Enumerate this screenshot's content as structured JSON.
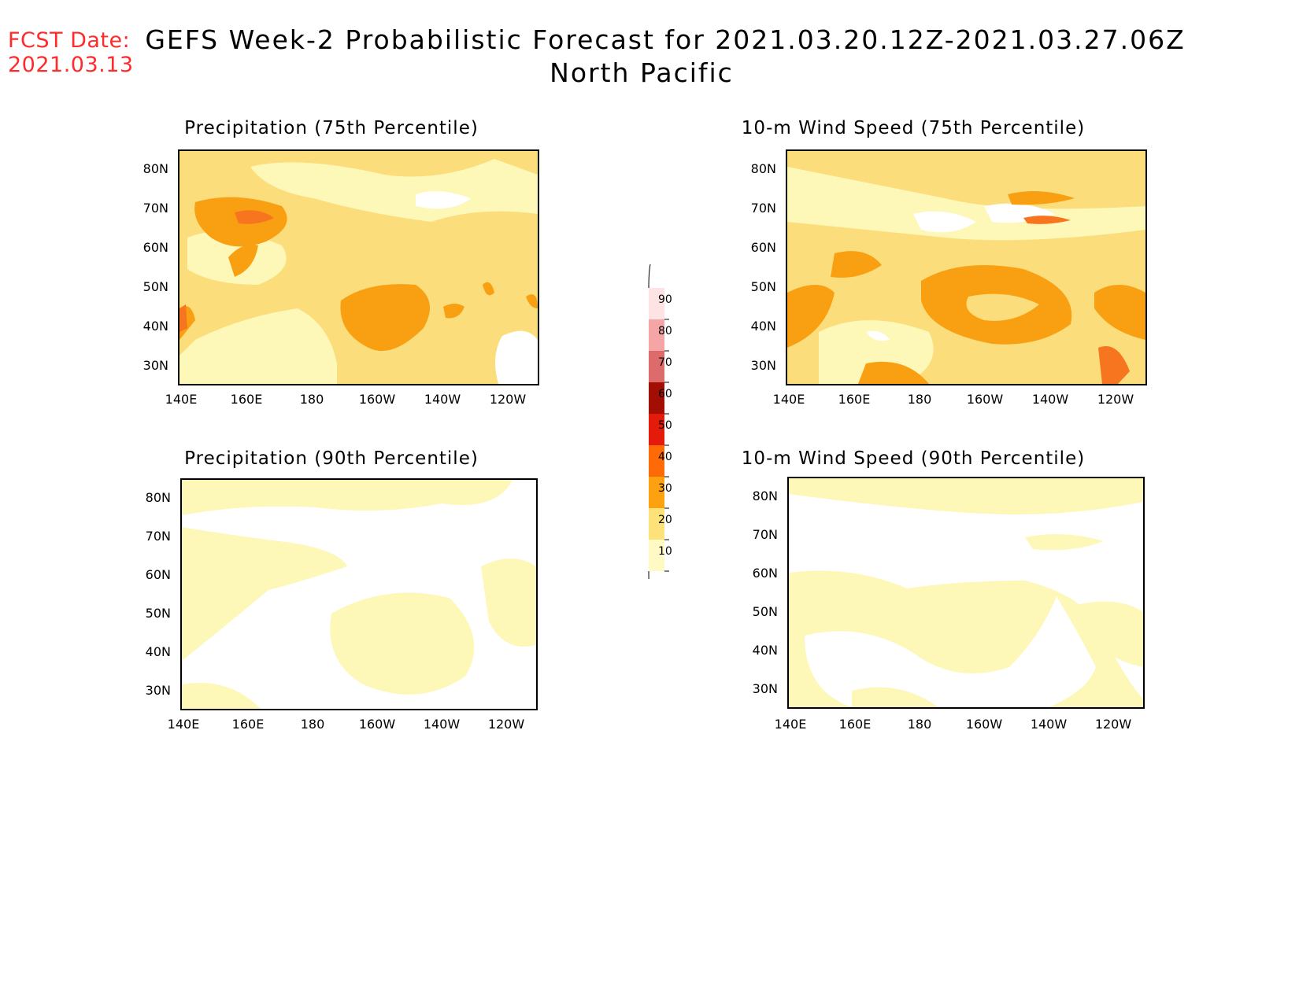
{
  "header": {
    "fcst_label": "FCST Date:",
    "fcst_date": "2021.03.13",
    "title": "GEFS Week-2 Probabilistic Forecast for 2021.03.20.12Z-2021.03.27.06Z",
    "region": "North Pacific"
  },
  "axes": {
    "lat_ticks": [
      "80N",
      "70N",
      "60N",
      "50N",
      "40N",
      "30N"
    ],
    "lon_ticks": [
      "140E",
      "160E",
      "180",
      "160W",
      "140W",
      "120W"
    ]
  },
  "panels": [
    {
      "id": "precip75",
      "title": "Precipitation (75th Percentile)"
    },
    {
      "id": "wind75",
      "title": "10-m Wind Speed (75th Percentile)"
    },
    {
      "id": "precip90",
      "title": "Precipitation (90th Percentile)"
    },
    {
      "id": "wind90",
      "title": "10-m Wind Speed (90th Percentile)"
    }
  ],
  "colorbar": {
    "levels": [
      "10",
      "20",
      "30",
      "40",
      "50",
      "60",
      "70",
      "80",
      "90"
    ],
    "colors": [
      "#fffac4",
      "#fde27a",
      "#fca211",
      "#fd6a06",
      "#e41a0a",
      "#a20d04",
      "#dd6b6b",
      "#f4a5a5",
      "#fde3e3"
    ]
  },
  "fill_colors": {
    "light": "#fdf7b8",
    "mid": "#fbdd7c",
    "orange": "#f9a012",
    "dark_orange": "#f8751f",
    "red": "#e23b0e"
  }
}
